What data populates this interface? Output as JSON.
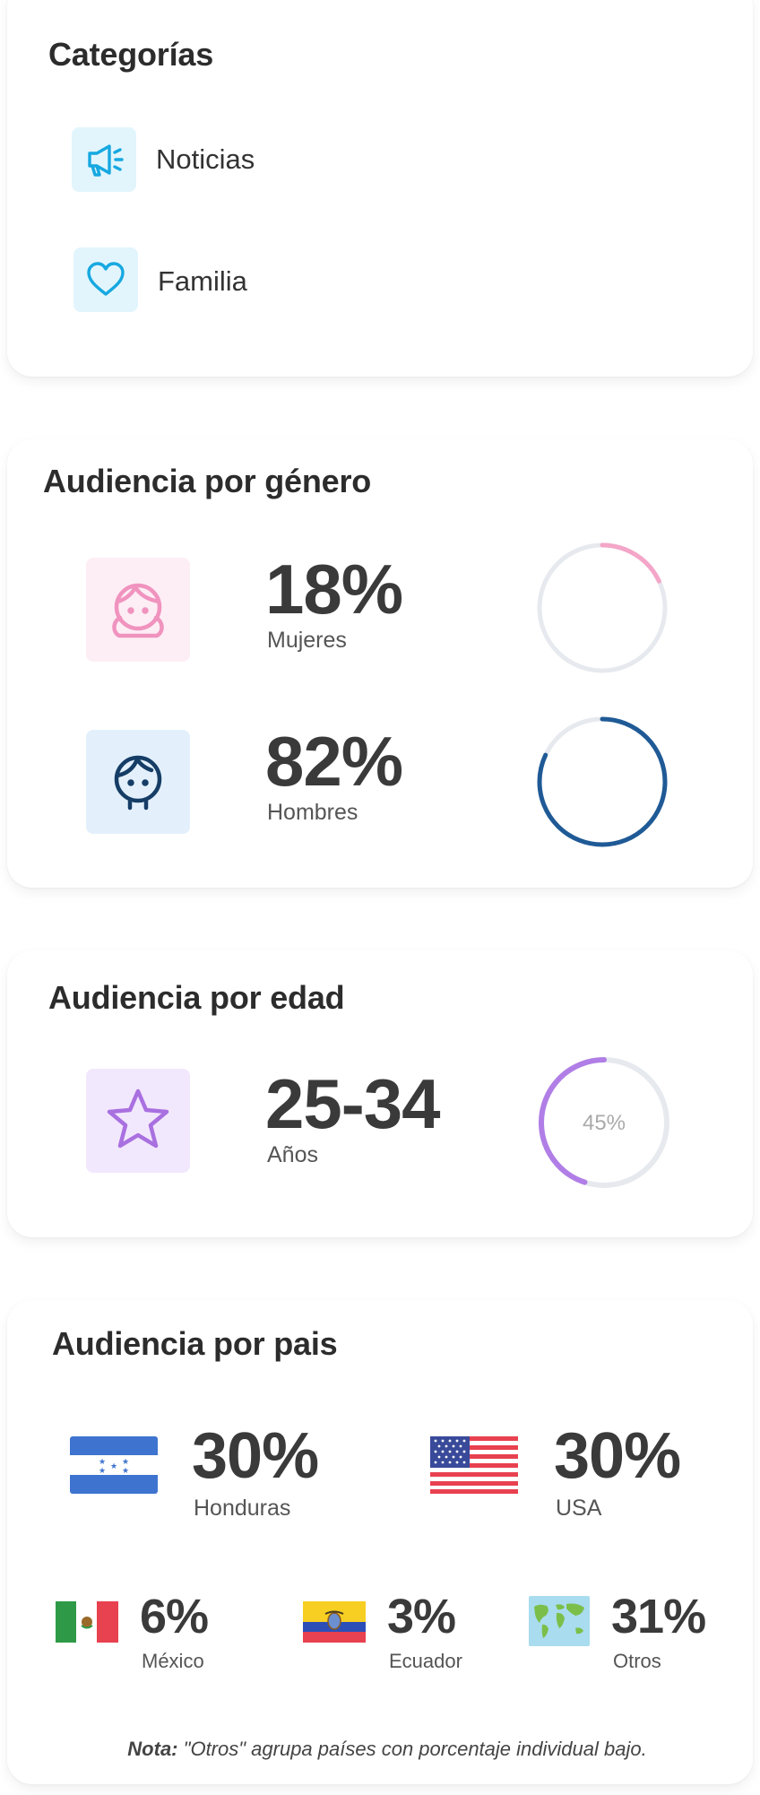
{
  "categories": {
    "title": "Categorías",
    "items": [
      {
        "label": "Noticias",
        "icon": "megaphone-icon"
      },
      {
        "label": "Familia",
        "icon": "heart-icon"
      }
    ]
  },
  "gender": {
    "title": "Audiencia por género",
    "items": [
      {
        "value": "18%",
        "label": "Mujeres",
        "percent": 18,
        "color": "#f4a6c8",
        "icon": "woman-face-icon"
      },
      {
        "value": "82%",
        "label": "Hombres",
        "percent": 82,
        "color": "#1f5a96",
        "icon": "man-face-icon"
      }
    ]
  },
  "age": {
    "title": "Audiencia por edad",
    "value": "25-34",
    "label": "Años",
    "percent": 45,
    "percent_label": "45%",
    "color": "#b07ee6",
    "icon": "star-icon"
  },
  "country": {
    "title": "Audiencia por pais",
    "items": [
      {
        "value": "30%",
        "label": "Honduras",
        "flag": "honduras-flag-icon"
      },
      {
        "value": "30%",
        "label": "USA",
        "flag": "usa-flag-icon"
      },
      {
        "value": "6%",
        "label": "México",
        "flag": "mexico-flag-icon"
      },
      {
        "value": "3%",
        "label": "Ecuador",
        "flag": "ecuador-flag-icon"
      },
      {
        "value": "31%",
        "label": "Otros",
        "flag": "world-map-icon"
      }
    ],
    "note_label": "Nota:",
    "note_text": "\"Otros\" agrupa países con porcentaje individual bajo."
  },
  "colors": {
    "ring_track": "#e6e9ee",
    "cat_icon": "#16a8e0",
    "cat_bg": "#e2f5fd"
  }
}
